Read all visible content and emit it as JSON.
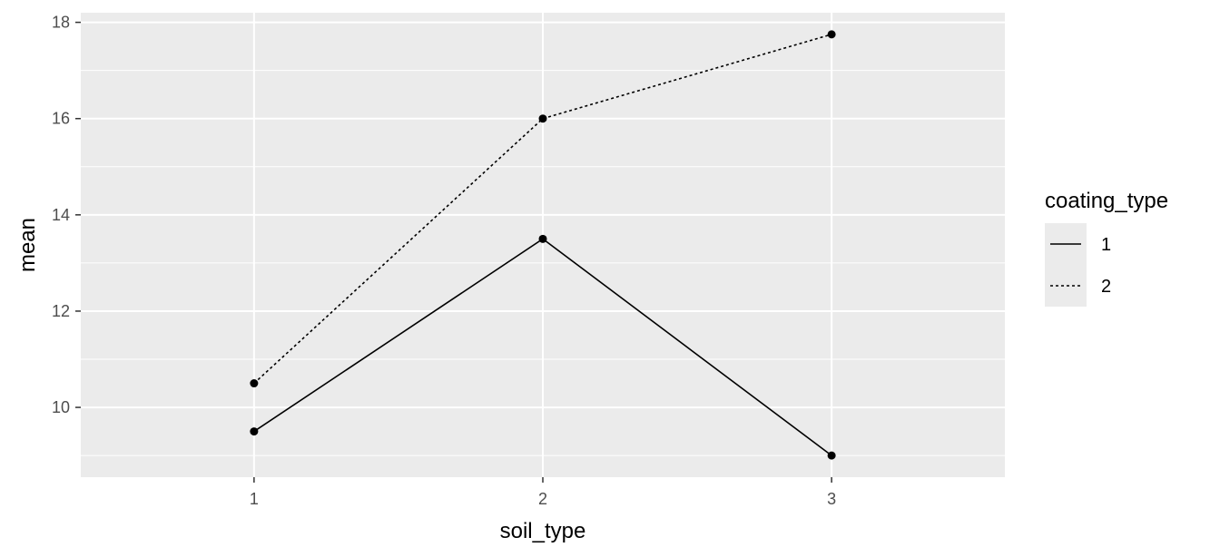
{
  "chart_data": {
    "type": "line",
    "title": "",
    "xlabel": "soil_type",
    "ylabel": "mean",
    "x": [
      1,
      2,
      3
    ],
    "x_tick_labels": [
      "1",
      "2",
      "3"
    ],
    "y_ticks": [
      10,
      12,
      14,
      16,
      18
    ],
    "y_tick_labels": [
      "10",
      "12",
      "14",
      "16",
      "18"
    ],
    "xlim": [
      0.4,
      3.6
    ],
    "ylim": [
      8.55,
      18.2
    ],
    "grid": true,
    "legend": {
      "title": "coating_type",
      "placement": "right"
    },
    "series": [
      {
        "name": "1",
        "linetype": "solid",
        "values": [
          9.5,
          13.5,
          9.0
        ]
      },
      {
        "name": "2",
        "linetype": "dotted",
        "values": [
          10.5,
          16.0,
          17.75
        ]
      }
    ],
    "colors": {
      "panel": "#ebebeb",
      "grid": "#ffffff",
      "line": "#000000",
      "tick_text": "#4d4d4d"
    }
  }
}
